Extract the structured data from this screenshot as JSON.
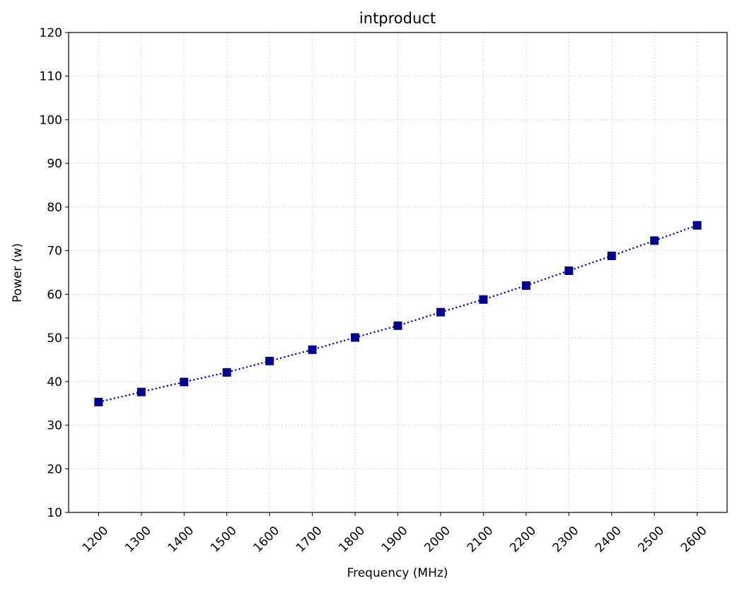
{
  "chart_data": {
    "type": "line",
    "title": "intproduct",
    "xlabel": "Frequency (MHz)",
    "ylabel": "Power (w)",
    "x": [
      1200,
      1300,
      1400,
      1500,
      1600,
      1700,
      1800,
      1900,
      2000,
      2100,
      2200,
      2300,
      2400,
      2500,
      2600
    ],
    "x_tick_labels": [
      "1200",
      "1300",
      "1400",
      "1500",
      "1600",
      "1700",
      "1800",
      "1900",
      "2000",
      "2100",
      "2200",
      "2300",
      "2400",
      "2500",
      "2600"
    ],
    "y_ticks": [
      10,
      20,
      30,
      40,
      50,
      60,
      70,
      80,
      90,
      100,
      110,
      120
    ],
    "y_tick_labels": [
      "10",
      "20",
      "30",
      "40",
      "50",
      "60",
      "70",
      "80",
      "90",
      "100",
      "110",
      "120"
    ],
    "xlim": [
      1130,
      2670
    ],
    "ylim": [
      10,
      120
    ],
    "grid": true,
    "x_tick_rotation": 45,
    "series": [
      {
        "values": [
          35.3,
          37.6,
          39.9,
          42.1,
          44.7,
          47.3,
          50.1,
          52.8,
          55.9,
          58.8,
          62.0,
          65.4,
          68.8,
          72.3,
          75.8
        ],
        "color": "#00008b",
        "line_style": "dotted",
        "marker": "square"
      }
    ]
  }
}
